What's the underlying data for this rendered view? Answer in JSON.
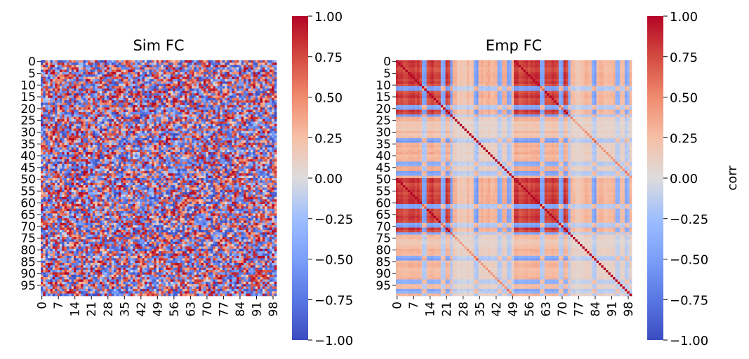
{
  "chart_data": [
    {
      "type": "heatmap",
      "title": "Sim FC",
      "xlabel": "",
      "ylabel": "",
      "n": 100,
      "xticks": [
        0,
        7,
        14,
        21,
        28,
        35,
        42,
        49,
        56,
        63,
        70,
        77,
        84,
        91,
        98
      ],
      "yticks": [
        0,
        5,
        10,
        15,
        20,
        25,
        30,
        35,
        40,
        45,
        50,
        55,
        60,
        65,
        70,
        75,
        80,
        85,
        90,
        95
      ],
      "vmin": -1.0,
      "vmax": 1.0,
      "colormap": "coolwarm",
      "values_description": "random correlations, roughly uniform in [-1, 1]",
      "colorbar": {
        "label": "",
        "ticks": [
          "1.00",
          "0.75",
          "0.50",
          "0.25",
          "0.00",
          "−0.25",
          "−0.50",
          "−0.75",
          "−1.00"
        ]
      }
    },
    {
      "type": "heatmap",
      "title": "Emp FC",
      "xlabel": "",
      "ylabel": "",
      "n": 100,
      "xticks": [
        0,
        7,
        14,
        21,
        28,
        35,
        42,
        49,
        56,
        63,
        70,
        77,
        84,
        91,
        98
      ],
      "yticks": [
        0,
        5,
        10,
        15,
        20,
        25,
        30,
        35,
        40,
        45,
        50,
        55,
        60,
        65,
        70,
        75,
        80,
        85,
        90,
        95
      ],
      "vmin": -1.0,
      "vmax": 1.0,
      "colormap": "coolwarm",
      "values_description": "structured correlation matrix, diagonal 1.0, strong positive blocks near indices 0-25 and 50-75",
      "colorbar": {
        "label": "corr",
        "ticks": [
          "1.00",
          "0.75",
          "0.50",
          "0.25",
          "0.00",
          "−0.25",
          "−0.50",
          "−0.75",
          "−1.00"
        ]
      }
    }
  ]
}
